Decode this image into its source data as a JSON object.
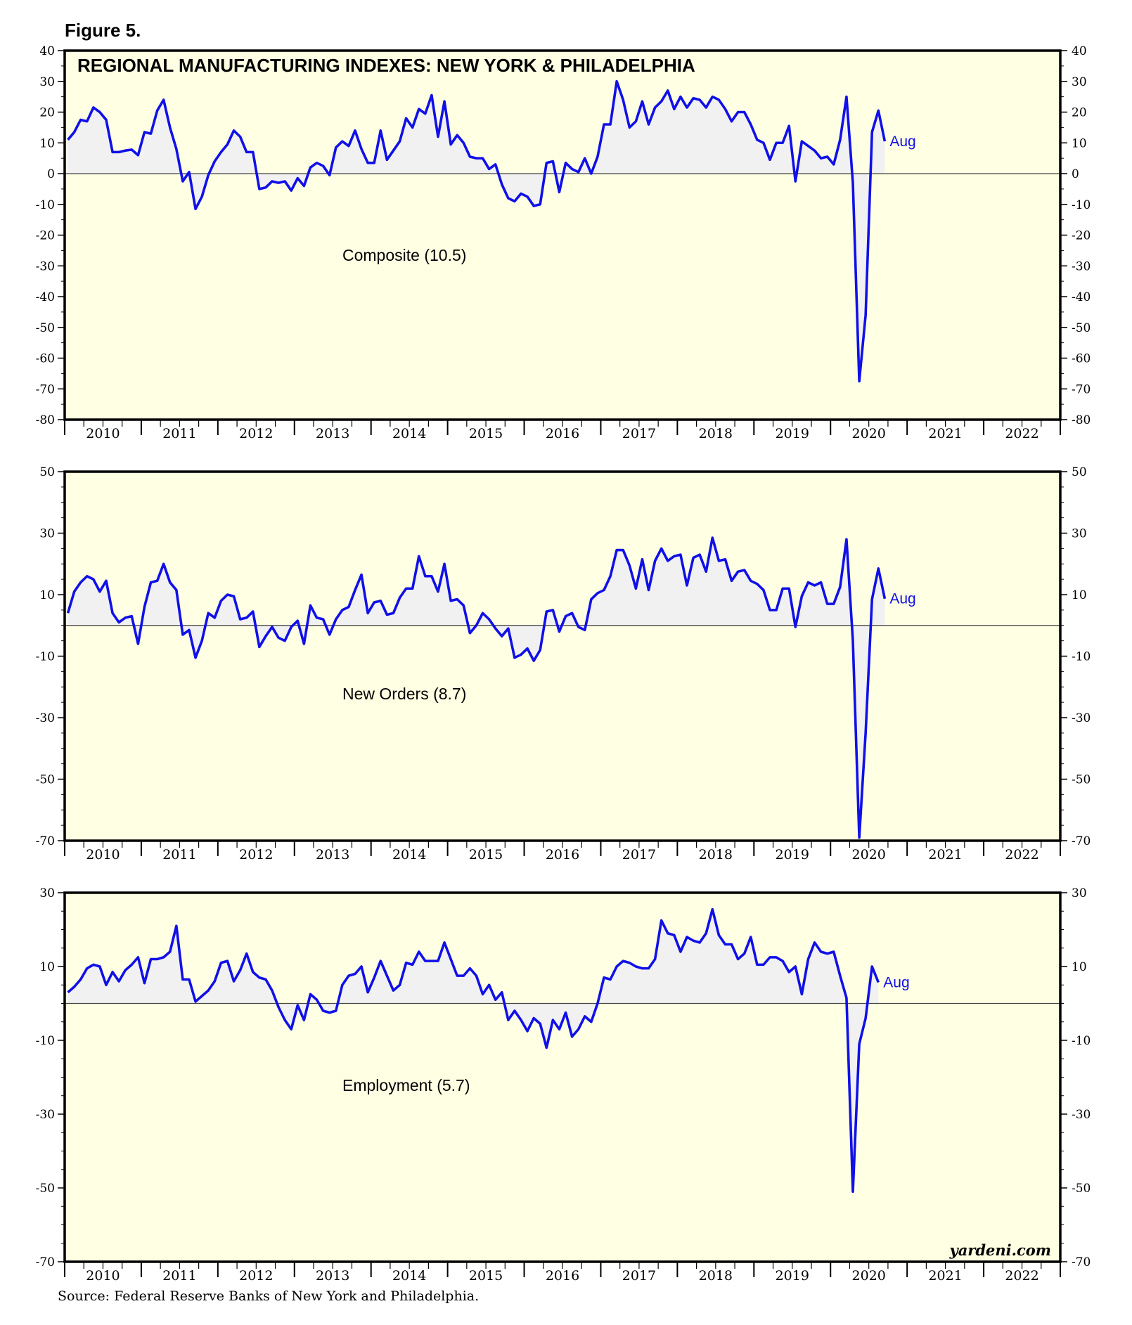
{
  "figure_label": "Figure 5.",
  "title": "REGIONAL MANUFACTURING INDEXES: NEW YORK & PHILADELPHIA",
  "source": "Source: Federal Reserve Banks of New York and Philadelphia.",
  "watermark": "yardeni.com",
  "colors": {
    "plot_bg": "#ffffe3",
    "line": "#1010e8",
    "fill": "#f1f1f2",
    "zero": "#444444"
  },
  "chart_data": [
    {
      "type": "area",
      "label": "Composite (10.5)",
      "end_label": "Aug",
      "x_start": "2010-01",
      "x_end": "2022-12",
      "x_ticks": [
        "2010",
        "2011",
        "2012",
        "2013",
        "2014",
        "2015",
        "2016",
        "2017",
        "2018",
        "2019",
        "2020",
        "2021",
        "2022"
      ],
      "ylim": [
        -80,
        40
      ],
      "y_ticks": [
        40,
        30,
        20,
        10,
        0,
        -10,
        -20,
        -30,
        -40,
        -50,
        -60,
        -70,
        -80
      ],
      "y_start_month": "2010-01",
      "values": [
        11,
        13.5,
        17.5,
        17,
        21.5,
        20,
        17.5,
        7,
        7,
        7.5,
        7.8,
        6,
        13.5,
        13,
        20.5,
        24,
        15,
        8,
        -2.5,
        0.5,
        -11.5,
        -7.5,
        -0.5,
        4,
        7,
        9.5,
        14,
        12,
        7,
        7,
        -5,
        -4.5,
        -2.5,
        -3,
        -2.5,
        -5.5,
        -1.5,
        -4,
        2,
        3.5,
        2.5,
        -0.5,
        8.5,
        10.5,
        9,
        14,
        8,
        3.5,
        3.5,
        14,
        4.5,
        7.5,
        10.5,
        18,
        15,
        21,
        19.5,
        25.5,
        12,
        23.5,
        9.5,
        12.5,
        10,
        5.5,
        5,
        5,
        1.5,
        3,
        -3.5,
        -8,
        -9,
        -6.5,
        -7.5,
        -10.5,
        -10,
        3.5,
        4,
        -6,
        3.5,
        1.5,
        0.5,
        5,
        0,
        5.5,
        16,
        16,
        30,
        24,
        15,
        17,
        23.5,
        16,
        21.5,
        23.5,
        27,
        21,
        25,
        21.5,
        24.5,
        24,
        21.5,
        25,
        24,
        21,
        17,
        20,
        20,
        16,
        11,
        10,
        4.5,
        10,
        10,
        15.5,
        -2.5,
        10.5,
        9,
        7.5,
        5,
        5.5,
        3,
        11,
        25,
        -3,
        -67.5,
        -46,
        13.5,
        20.5,
        10.5
      ]
    },
    {
      "type": "area",
      "label": "New Orders (8.7)",
      "end_label": "Aug",
      "x_start": "2010-01",
      "x_end": "2022-12",
      "x_ticks": [
        "2010",
        "2011",
        "2012",
        "2013",
        "2014",
        "2015",
        "2016",
        "2017",
        "2018",
        "2019",
        "2020",
        "2021",
        "2022"
      ],
      "ylim": [
        -70,
        50
      ],
      "y_ticks": [
        50,
        30,
        10,
        -10,
        -30,
        -50,
        -70
      ],
      "y_start_month": "2010-01",
      "values": [
        4,
        11,
        14,
        16,
        15,
        11,
        14.5,
        4,
        1,
        2.5,
        3,
        -6,
        6,
        14,
        14.5,
        20,
        14,
        11.5,
        -3,
        -1.5,
        -10.5,
        -5,
        4,
        2.5,
        8,
        10,
        9.5,
        2,
        2.5,
        4.5,
        -7,
        -3.5,
        -0.5,
        -4,
        -5,
        -0.5,
        1.5,
        -6,
        6.5,
        2.5,
        2,
        -3,
        2,
        5,
        6,
        11.5,
        16.5,
        4,
        7.5,
        8,
        3.5,
        4,
        9,
        12,
        12,
        22.5,
        16,
        16,
        11,
        20,
        8,
        8.5,
        6.5,
        -2.5,
        0,
        4,
        2,
        -1,
        -3.5,
        -1,
        -10.5,
        -9.5,
        -7.5,
        -11.5,
        -8,
        4.5,
        5,
        -2,
        3,
        4,
        -0.5,
        -1.5,
        8.5,
        10.5,
        11.5,
        16,
        24.5,
        24.5,
        19.5,
        12,
        21.5,
        11.5,
        21,
        25,
        21,
        22.5,
        23,
        13,
        22,
        23,
        17.5,
        28.5,
        21,
        21.5,
        14.5,
        17.5,
        18,
        14.5,
        13.5,
        11.5,
        5,
        5,
        12,
        12,
        -0.5,
        9.5,
        14,
        13,
        14,
        7,
        7,
        12.5,
        28,
        -5,
        -69,
        -35,
        8.5,
        18.5,
        8.7
      ]
    },
    {
      "type": "area",
      "label": "Employment (5.7)",
      "end_label": "Aug",
      "x_start": "2010-01",
      "x_end": "2022-12",
      "x_ticks": [
        "2010",
        "2011",
        "2012",
        "2013",
        "2014",
        "2015",
        "2016",
        "2017",
        "2018",
        "2019",
        "2020",
        "2021",
        "2022"
      ],
      "ylim": [
        -70,
        30
      ],
      "y_ticks": [
        30,
        10,
        -10,
        -30,
        -50,
        -70
      ],
      "y_start_month": "2010-01",
      "values": [
        3,
        4.5,
        6.5,
        9.5,
        10.5,
        10,
        5,
        8.5,
        6,
        9,
        10.5,
        12.5,
        5.5,
        12,
        12,
        12.5,
        14,
        21,
        6.5,
        6.5,
        0.5,
        2,
        3.5,
        6,
        11,
        11.5,
        6,
        9,
        13.5,
        8.5,
        7,
        6.5,
        3.5,
        -1,
        -4.5,
        -7,
        -0.5,
        -4.5,
        2.5,
        1,
        -2,
        -2.5,
        -2,
        5,
        7.5,
        8,
        10,
        3,
        7,
        11.5,
        7.5,
        3.5,
        5,
        11,
        10.5,
        14,
        11.5,
        11.5,
        11.5,
        16.5,
        12,
        7.5,
        7.5,
        9.5,
        7.5,
        2.5,
        5,
        1,
        3,
        -4.5,
        -2,
        -4.5,
        -7.5,
        -4,
        -5.5,
        -12,
        -4.5,
        -7,
        -2.5,
        -9,
        -7,
        -3.5,
        -5,
        0,
        7,
        6.5,
        10,
        11.5,
        11,
        10,
        9.5,
        9.5,
        12,
        22.5,
        19,
        18.5,
        14,
        18,
        17,
        16.5,
        19,
        25.5,
        18.5,
        16,
        16,
        12,
        13.5,
        18,
        10.5,
        10.5,
        12.5,
        12.5,
        11.5,
        8.5,
        10,
        2.5,
        12,
        16.5,
        14,
        13.5,
        14,
        7.5,
        1.5,
        -51,
        -11,
        -4,
        10,
        5.7
      ]
    }
  ]
}
